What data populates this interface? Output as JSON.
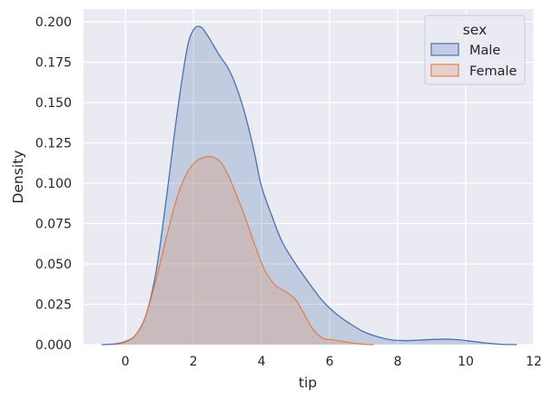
{
  "chart_data": {
    "type": "area",
    "xlabel": "tip",
    "ylabel": "Density",
    "xlim": [
      -1.23,
      12.0
    ],
    "ylim": [
      0,
      0.2079
    ],
    "x_ticks": [
      0,
      2,
      4,
      6,
      8,
      10,
      12
    ],
    "y_ticks": [
      0.0,
      0.025,
      0.05,
      0.075,
      0.1,
      0.125,
      0.15,
      0.175,
      0.2
    ],
    "x_tick_labels": [
      "0",
      "2",
      "4",
      "6",
      "8",
      "10",
      "12"
    ],
    "y_tick_labels": [
      "0.000",
      "0.025",
      "0.050",
      "0.075",
      "0.100",
      "0.125",
      "0.150",
      "0.175",
      "0.200"
    ],
    "grid": true,
    "legend": {
      "title": "sex",
      "position": "top-right"
    },
    "series": [
      {
        "name": "Male",
        "color": "#4c72b0",
        "x": [
          -0.7,
          -0.3,
          0,
          0.3,
          0.6,
          0.9,
          1.2,
          1.5,
          1.8,
          2.0,
          2.2,
          2.4,
          2.6,
          2.8,
          3.0,
          3.2,
          3.4,
          3.6,
          3.8,
          4.0,
          4.3,
          4.6,
          5.0,
          5.4,
          5.8,
          6.2,
          6.6,
          7.0,
          7.4,
          7.8,
          8.2,
          8.6,
          9.0,
          9.4,
          9.8,
          10.2,
          10.6,
          11.0,
          11.5
        ],
        "y": [
          0.0,
          0.0005,
          0.002,
          0.006,
          0.018,
          0.045,
          0.09,
          0.14,
          0.182,
          0.195,
          0.197,
          0.192,
          0.185,
          0.178,
          0.172,
          0.163,
          0.151,
          0.136,
          0.118,
          0.098,
          0.08,
          0.064,
          0.05,
          0.038,
          0.027,
          0.019,
          0.013,
          0.008,
          0.005,
          0.003,
          0.0025,
          0.0028,
          0.0032,
          0.0034,
          0.003,
          0.002,
          0.001,
          0.0003,
          0.0
        ]
      },
      {
        "name": "Female",
        "color": "#dd8452",
        "x": [
          -0.3,
          0,
          0.3,
          0.6,
          0.9,
          1.2,
          1.5,
          1.8,
          2.1,
          2.4,
          2.6,
          2.8,
          3.0,
          3.2,
          3.5,
          3.8,
          4.1,
          4.4,
          4.7,
          5.0,
          5.2,
          5.5,
          5.8,
          6.1,
          6.4,
          6.7,
          7.0,
          7.3
        ],
        "y": [
          0.0,
          0.0015,
          0.006,
          0.018,
          0.04,
          0.066,
          0.09,
          0.106,
          0.114,
          0.1165,
          0.116,
          0.113,
          0.106,
          0.096,
          0.08,
          0.062,
          0.046,
          0.037,
          0.033,
          0.028,
          0.021,
          0.01,
          0.004,
          0.003,
          0.002,
          0.001,
          0.0003,
          0.0
        ]
      }
    ]
  }
}
